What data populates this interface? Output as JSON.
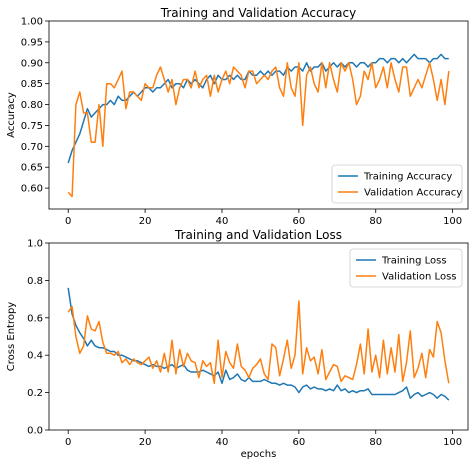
{
  "chart_data": [
    {
      "type": "line",
      "title": "Training and Validation Accuracy",
      "xlabel": "",
      "ylabel": "Accuracy",
      "xlim": [
        -5,
        104
      ],
      "ylim": [
        0.55,
        1.0
      ],
      "xticks": [
        0,
        20,
        40,
        60,
        80,
        100
      ],
      "xtick_labels": [
        "0",
        "20",
        "40",
        "60",
        "80",
        "100"
      ],
      "yticks": [
        0.6,
        0.65,
        0.7,
        0.75,
        0.8,
        0.85,
        0.9,
        0.95,
        1.0
      ],
      "ytick_labels": [
        "0.60",
        "0.65",
        "0.70",
        "0.75",
        "0.80",
        "0.85",
        "0.90",
        "0.95",
        "1.00"
      ],
      "grid": false,
      "legend_position": "bottom-right",
      "x": [
        0,
        1,
        2,
        3,
        4,
        5,
        6,
        7,
        8,
        9,
        10,
        11,
        12,
        13,
        14,
        15,
        16,
        17,
        18,
        19,
        20,
        21,
        22,
        23,
        24,
        25,
        26,
        27,
        28,
        29,
        30,
        31,
        32,
        33,
        34,
        35,
        36,
        37,
        38,
        39,
        40,
        41,
        42,
        43,
        44,
        45,
        46,
        47,
        48,
        49,
        50,
        51,
        52,
        53,
        54,
        55,
        56,
        57,
        58,
        59,
        60,
        61,
        62,
        63,
        64,
        65,
        66,
        67,
        68,
        69,
        70,
        71,
        72,
        73,
        74,
        75,
        76,
        77,
        78,
        79,
        80,
        81,
        82,
        83,
        84,
        85,
        86,
        87,
        88,
        89,
        90,
        91,
        92,
        93,
        94,
        95,
        96,
        97,
        98,
        99
      ],
      "series": [
        {
          "name": "Training Accuracy",
          "color": "#1f77b4",
          "values": [
            0.66,
            0.69,
            0.71,
            0.73,
            0.76,
            0.79,
            0.77,
            0.78,
            0.79,
            0.8,
            0.8,
            0.81,
            0.8,
            0.82,
            0.81,
            0.81,
            0.82,
            0.83,
            0.82,
            0.83,
            0.84,
            0.84,
            0.83,
            0.84,
            0.84,
            0.85,
            0.86,
            0.84,
            0.85,
            0.85,
            0.84,
            0.86,
            0.85,
            0.86,
            0.85,
            0.84,
            0.86,
            0.87,
            0.85,
            0.87,
            0.86,
            0.86,
            0.87,
            0.86,
            0.87,
            0.86,
            0.86,
            0.88,
            0.87,
            0.87,
            0.88,
            0.87,
            0.88,
            0.87,
            0.88,
            0.88,
            0.87,
            0.89,
            0.88,
            0.89,
            0.89,
            0.88,
            0.9,
            0.88,
            0.89,
            0.89,
            0.9,
            0.88,
            0.89,
            0.9,
            0.89,
            0.9,
            0.89,
            0.9,
            0.9,
            0.89,
            0.9,
            0.9,
            0.89,
            0.9,
            0.9,
            0.91,
            0.91,
            0.9,
            0.91,
            0.91,
            0.9,
            0.91,
            0.9,
            0.91,
            0.92,
            0.91,
            0.91,
            0.91,
            0.9,
            0.91,
            0.91,
            0.92,
            0.91,
            0.91
          ]
        },
        {
          "name": "Validation Accuracy",
          "color": "#ff7f0e",
          "values": [
            0.59,
            0.58,
            0.8,
            0.83,
            0.78,
            0.78,
            0.71,
            0.71,
            0.8,
            0.7,
            0.85,
            0.85,
            0.84,
            0.86,
            0.88,
            0.79,
            0.83,
            0.83,
            0.82,
            0.81,
            0.85,
            0.84,
            0.84,
            0.87,
            0.89,
            0.86,
            0.83,
            0.86,
            0.8,
            0.84,
            0.86,
            0.86,
            0.84,
            0.88,
            0.84,
            0.86,
            0.87,
            0.82,
            0.87,
            0.83,
            0.86,
            0.88,
            0.85,
            0.89,
            0.88,
            0.87,
            0.84,
            0.88,
            0.88,
            0.85,
            0.86,
            0.87,
            0.86,
            0.88,
            0.89,
            0.84,
            0.82,
            0.9,
            0.84,
            0.82,
            0.9,
            0.75,
            0.87,
            0.89,
            0.85,
            0.83,
            0.9,
            0.84,
            0.9,
            0.86,
            0.83,
            0.9,
            0.88,
            0.9,
            0.86,
            0.8,
            0.82,
            0.88,
            0.86,
            0.9,
            0.84,
            0.86,
            0.89,
            0.84,
            0.9,
            0.86,
            0.83,
            0.89,
            0.89,
            0.82,
            0.84,
            0.86,
            0.84,
            0.87,
            0.9,
            0.86,
            0.81,
            0.86,
            0.8,
            0.88
          ]
        }
      ]
    },
    {
      "type": "line",
      "title": "Training and Validation Loss",
      "xlabel": "epochs",
      "ylabel": "Cross Entropy",
      "xlim": [
        -5,
        104
      ],
      "ylim": [
        0.0,
        1.0
      ],
      "xticks": [
        0,
        20,
        40,
        60,
        80,
        100
      ],
      "xtick_labels": [
        "0",
        "20",
        "40",
        "60",
        "80",
        "100"
      ],
      "yticks": [
        0.0,
        0.2,
        0.4,
        0.6,
        0.8,
        1.0
      ],
      "ytick_labels": [
        "0.0",
        "0.2",
        "0.4",
        "0.6",
        "0.8",
        "1.0"
      ],
      "grid": false,
      "legend_position": "top-right",
      "x": [
        0,
        1,
        2,
        3,
        4,
        5,
        6,
        7,
        8,
        9,
        10,
        11,
        12,
        13,
        14,
        15,
        16,
        17,
        18,
        19,
        20,
        21,
        22,
        23,
        24,
        25,
        26,
        27,
        28,
        29,
        30,
        31,
        32,
        33,
        34,
        35,
        36,
        37,
        38,
        39,
        40,
        41,
        42,
        43,
        44,
        45,
        46,
        47,
        48,
        49,
        50,
        51,
        52,
        53,
        54,
        55,
        56,
        57,
        58,
        59,
        60,
        61,
        62,
        63,
        64,
        65,
        66,
        67,
        68,
        69,
        70,
        71,
        72,
        73,
        74,
        75,
        76,
        77,
        78,
        79,
        80,
        81,
        82,
        83,
        84,
        85,
        86,
        87,
        88,
        89,
        90,
        91,
        92,
        93,
        94,
        95,
        96,
        97,
        98,
        99
      ],
      "series": [
        {
          "name": "Training Loss",
          "color": "#1f77b4",
          "values": [
            0.76,
            0.62,
            0.56,
            0.52,
            0.49,
            0.45,
            0.48,
            0.45,
            0.44,
            0.44,
            0.43,
            0.42,
            0.42,
            0.4,
            0.4,
            0.39,
            0.38,
            0.37,
            0.37,
            0.36,
            0.35,
            0.34,
            0.35,
            0.34,
            0.34,
            0.33,
            0.34,
            0.35,
            0.33,
            0.34,
            0.35,
            0.32,
            0.31,
            0.31,
            0.31,
            0.32,
            0.31,
            0.3,
            0.29,
            0.31,
            0.25,
            0.32,
            0.27,
            0.28,
            0.3,
            0.27,
            0.26,
            0.28,
            0.26,
            0.26,
            0.26,
            0.27,
            0.26,
            0.25,
            0.25,
            0.24,
            0.25,
            0.24,
            0.24,
            0.23,
            0.2,
            0.23,
            0.24,
            0.22,
            0.23,
            0.22,
            0.22,
            0.21,
            0.22,
            0.21,
            0.24,
            0.21,
            0.22,
            0.2,
            0.21,
            0.2,
            0.21,
            0.21,
            0.22,
            0.19,
            0.19,
            0.19,
            0.19,
            0.19,
            0.19,
            0.19,
            0.2,
            0.21,
            0.23,
            0.17,
            0.19,
            0.2,
            0.18,
            0.19,
            0.2,
            0.19,
            0.17,
            0.19,
            0.18,
            0.16
          ]
        },
        {
          "name": "Validation Loss",
          "color": "#ff7f0e",
          "values": [
            0.63,
            0.66,
            0.5,
            0.41,
            0.45,
            0.61,
            0.54,
            0.53,
            0.58,
            0.47,
            0.41,
            0.41,
            0.4,
            0.42,
            0.36,
            0.38,
            0.35,
            0.38,
            0.36,
            0.35,
            0.37,
            0.39,
            0.33,
            0.37,
            0.31,
            0.41,
            0.31,
            0.48,
            0.3,
            0.43,
            0.34,
            0.41,
            0.37,
            0.36,
            0.28,
            0.37,
            0.34,
            0.36,
            0.25,
            0.48,
            0.28,
            0.42,
            0.36,
            0.33,
            0.46,
            0.34,
            0.32,
            0.28,
            0.33,
            0.35,
            0.38,
            0.3,
            0.27,
            0.46,
            0.44,
            0.29,
            0.38,
            0.48,
            0.33,
            0.4,
            0.69,
            0.3,
            0.44,
            0.37,
            0.39,
            0.3,
            0.43,
            0.27,
            0.31,
            0.35,
            0.34,
            0.26,
            0.29,
            0.28,
            0.27,
            0.35,
            0.46,
            0.3,
            0.54,
            0.31,
            0.4,
            0.28,
            0.48,
            0.3,
            0.44,
            0.31,
            0.51,
            0.26,
            0.36,
            0.53,
            0.28,
            0.33,
            0.41,
            0.28,
            0.43,
            0.39,
            0.58,
            0.52,
            0.37,
            0.25
          ]
        }
      ]
    }
  ]
}
